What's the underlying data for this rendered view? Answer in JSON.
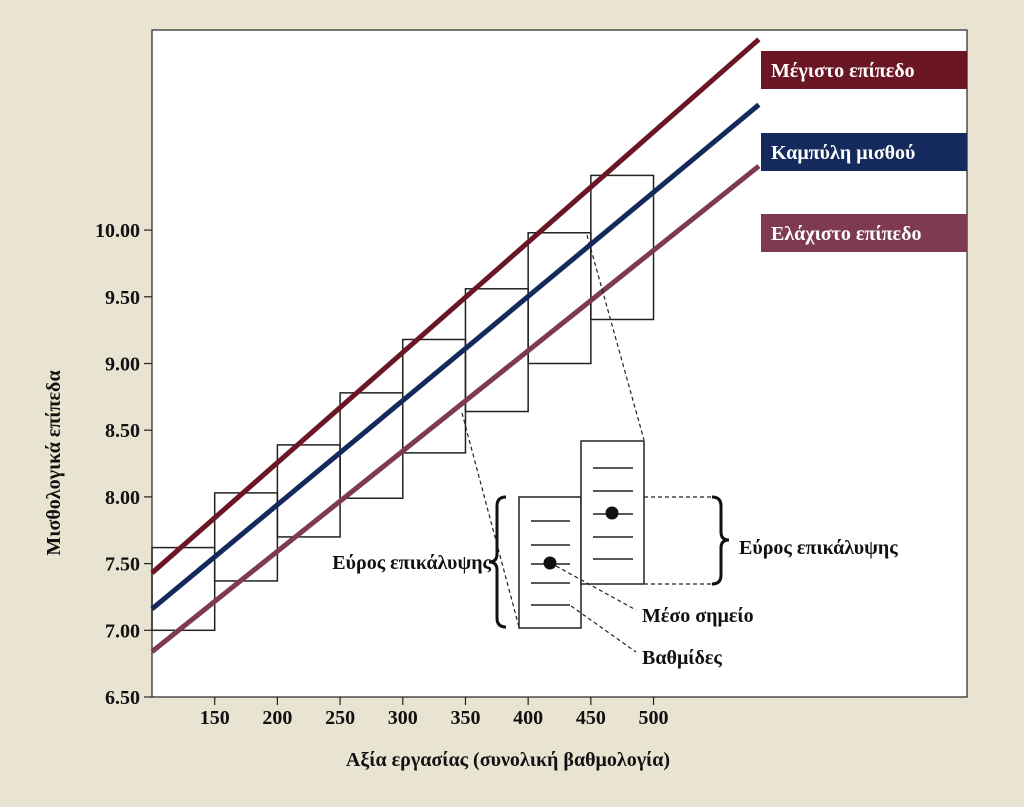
{
  "chart_data": {
    "type": "line",
    "xlabel": "Αξία εργασίας (συνολική βαθμολογία)",
    "ylabel": "Μισθολογικά επίπεδα",
    "x_ticks": [
      150,
      200,
      250,
      300,
      350,
      400,
      450,
      500
    ],
    "x_tick_labels": [
      "150",
      "200",
      "250",
      "300",
      "350",
      "400",
      "450",
      "500"
    ],
    "y_ticks": [
      6.5,
      7.0,
      7.5,
      8.0,
      8.5,
      9.0,
      9.5,
      10.0
    ],
    "y_tick_labels": [
      "6.50",
      "7.00",
      "7.50",
      "8.00",
      "8.50",
      "9.00",
      "9.50",
      "10.00"
    ],
    "xlim": [
      100,
      750
    ],
    "ylim": [
      6.5,
      11.5
    ],
    "grid": false,
    "series": [
      {
        "name": "Μέγιστο επίπεδο",
        "color": "#6b1624",
        "x": [
          100,
          584
        ],
        "y": [
          7.43,
          11.43
        ]
      },
      {
        "name": "Καμπύλη μισθού",
        "color": "#142a5c",
        "x": [
          100,
          584
        ],
        "y": [
          7.16,
          10.94
        ]
      },
      {
        "name": "Ελάχιστο επίπεδο",
        "color": "#7d3a52",
        "x": [
          100,
          584
        ],
        "y": [
          6.84,
          10.48
        ]
      }
    ],
    "pay_grades": [
      {
        "x_start": 100,
        "x_end": 150,
        "min": 7.0,
        "max": 7.62
      },
      {
        "x_start": 150,
        "x_end": 200,
        "min": 7.37,
        "max": 8.03
      },
      {
        "x_start": 200,
        "x_end": 250,
        "min": 7.7,
        "max": 8.39
      },
      {
        "x_start": 250,
        "x_end": 300,
        "min": 7.99,
        "max": 8.78
      },
      {
        "x_start": 300,
        "x_end": 350,
        "min": 8.33,
        "max": 9.18
      },
      {
        "x_start": 350,
        "x_end": 400,
        "min": 8.64,
        "max": 9.56
      },
      {
        "x_start": 400,
        "x_end": 450,
        "min": 9.0,
        "max": 9.98
      },
      {
        "x_start": 450,
        "x_end": 500,
        "min": 9.33,
        "max": 10.41
      }
    ],
    "annotations": {
      "overlap_left": "Εύρος επικάλυψης",
      "overlap_right": "Εύρος επικάλυψης",
      "midpoint": "Μέσο σημείο",
      "steps": "Βαθμίδες"
    }
  }
}
